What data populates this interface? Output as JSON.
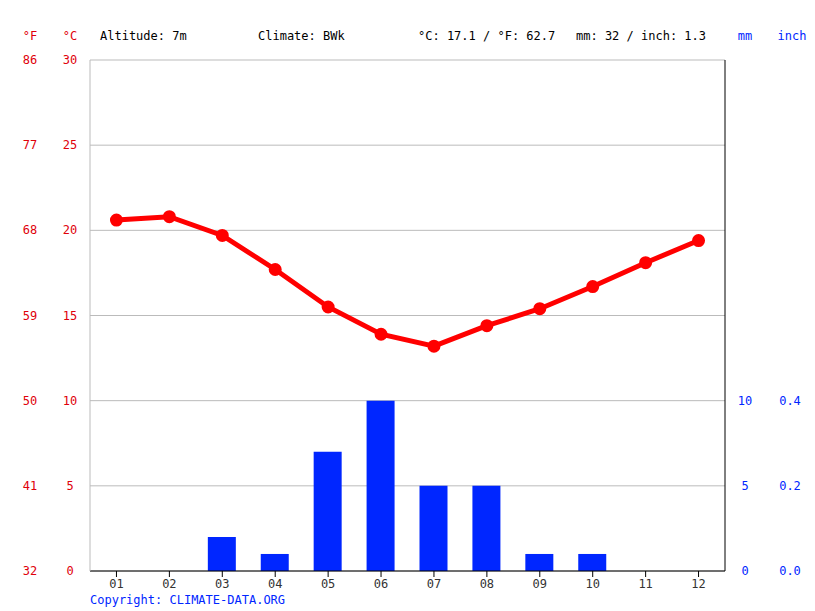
{
  "chart_data": {
    "type": "climate",
    "header": {
      "altitude": "Altitude: 7m",
      "climate": "Climate: BWk",
      "temperature_mean": "°C: 17.1 / °F: 62.7",
      "precipitation_total": "mm: 32 / inch: 1.3"
    },
    "copyright": "Copyright: CLIMATE-DATA.ORG",
    "categories": [
      "01",
      "02",
      "03",
      "04",
      "05",
      "06",
      "07",
      "08",
      "09",
      "10",
      "11",
      "12"
    ],
    "series": [
      {
        "type": "line",
        "color": "#ff0000",
        "marker": "circle",
        "values": [
          20.6,
          20.8,
          19.7,
          17.7,
          15.5,
          13.9,
          13.2,
          14.4,
          15.4,
          16.7,
          18.1,
          19.4
        ]
      },
      {
        "type": "bar",
        "color": "#0026ff",
        "axis": "y2",
        "values": [
          0,
          0,
          2,
          1,
          7,
          10,
          5,
          5,
          1,
          1,
          0,
          0
        ]
      }
    ],
    "y_label": "°C",
    "y_label_f": "°F",
    "ylim": [
      0,
      30
    ],
    "yticks": [
      0,
      5,
      10,
      15,
      20,
      25,
      30
    ],
    "yticks_f": [
      32,
      41,
      50,
      59,
      68,
      77,
      86
    ],
    "y2_label": "mm",
    "y2_label_inch": "inch",
    "y2lim": [
      0,
      30
    ],
    "y2ticks": [
      0,
      5,
      10
    ],
    "y2ticks_inch": [
      {
        "value": 0,
        "label": "0.0"
      },
      {
        "value": 0.2,
        "label": "0.2"
      },
      {
        "value": 0.4,
        "label": "0.4"
      }
    ],
    "grid": true
  }
}
